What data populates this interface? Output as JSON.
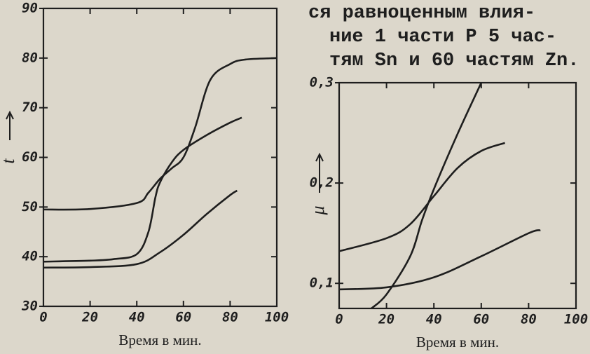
{
  "chart_data": [
    {
      "type": "line",
      "xlabel": "Время в мин.",
      "ylabel": "t",
      "xlim": [
        0,
        100
      ],
      "ylim": [
        30,
        90
      ],
      "xticks": [
        0,
        20,
        40,
        60,
        80,
        100
      ],
      "yticks": [
        30,
        40,
        50,
        60,
        70,
        80,
        90
      ],
      "series": [
        {
          "color": "#1e1e1e",
          "x": [
            0,
            20,
            40,
            45,
            50,
            55,
            60,
            65,
            71.5,
            80,
            86.5,
            100
          ],
          "values": [
            49.5,
            49.6,
            50.8,
            52.9,
            55.7,
            57.8,
            60,
            66,
            75.6,
            78.8,
            79.7,
            80
          ]
        },
        {
          "color": "#1e1e1e",
          "x": [
            0,
            20,
            30,
            40,
            45,
            48,
            50,
            55,
            60,
            70,
            80,
            85
          ],
          "values": [
            39,
            39.2,
            39.5,
            40.5,
            45,
            52,
            55,
            59,
            61.5,
            64.5,
            67,
            68
          ]
        },
        {
          "color": "#1e1e1e",
          "x": [
            0,
            20,
            40,
            50,
            60,
            70,
            80,
            83
          ],
          "values": [
            37.8,
            37.9,
            38.5,
            40.9,
            44.4,
            48.6,
            52.4,
            53.3
          ]
        }
      ]
    },
    {
      "type": "line",
      "xlabel": "Время в мин.",
      "ylabel": "μ",
      "xlim": [
        0,
        100
      ],
      "ylim": [
        0.075,
        0.3
      ],
      "xticks": [
        0,
        20,
        40,
        60,
        80,
        100
      ],
      "yticks": [
        {
          "value": 0.1,
          "label": "0,1"
        },
        {
          "value": 0.2,
          "label": "0,2"
        },
        {
          "value": 0.3,
          "label": "0,3"
        }
      ],
      "series": [
        {
          "color": "#1e1e1e",
          "x": [
            13.6,
            20,
            30,
            35,
            40,
            50,
            60
          ],
          "values": [
            0.075,
            0.089,
            0.127,
            0.163,
            0.194,
            0.249,
            0.3
          ]
        },
        {
          "color": "#1e1e1e",
          "x": [
            0,
            20,
            30,
            40,
            50,
            60,
            70
          ],
          "values": [
            0.132,
            0.145,
            0.159,
            0.187,
            0.215,
            0.232,
            0.24
          ]
        },
        {
          "color": "#1e1e1e",
          "x": [
            0,
            20,
            40,
            60,
            80,
            85
          ],
          "values": [
            0.094,
            0.096,
            0.106,
            0.127,
            0.15,
            0.153
          ]
        }
      ]
    }
  ],
  "text": {
    "lines": [
      "ся равноценным влия-",
      "ние 1 части Р 5 час-",
      "тям Sn и 60 частям Zn."
    ]
  }
}
